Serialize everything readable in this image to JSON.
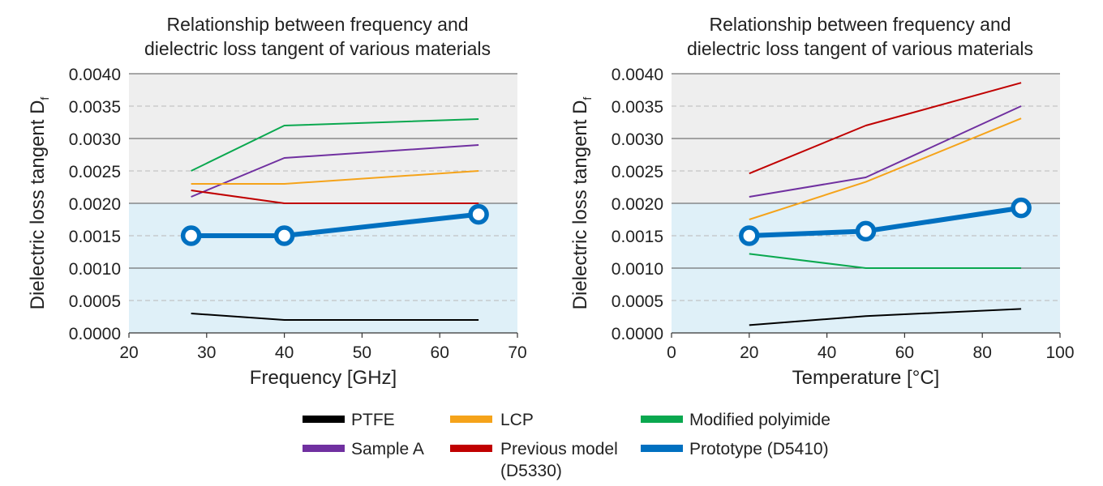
{
  "chart_data": [
    {
      "type": "line",
      "title_lines": [
        "Relationship between frequency and",
        "dielectric loss tangent of various materials"
      ],
      "xlabel": "Frequency [GHz]",
      "ylabel": "Dielectric loss tangent D",
      "ylabel_sub": "f",
      "xlim": [
        20,
        70
      ],
      "ylim": [
        0,
        0.004
      ],
      "xticks": [
        20,
        30,
        40,
        50,
        60,
        70
      ],
      "yticks": [
        "0.0000",
        "0.0005",
        "0.0010",
        "0.0015",
        "0.0020",
        "0.0025",
        "0.0030",
        "0.0035",
        "0.0040"
      ],
      "ytick_values": [
        0,
        0.0005,
        0.001,
        0.0015,
        0.002,
        0.0025,
        0.003,
        0.0035,
        0.004
      ],
      "bands": [
        {
          "from": 0,
          "to": 0.002,
          "color": "#dff0f8"
        },
        {
          "from": 0.002,
          "to": 0.004,
          "color": "#eeeeee"
        }
      ],
      "series": [
        {
          "name": "PTFE",
          "x": [
            28,
            40,
            65
          ],
          "y": [
            0.0003,
            0.0002,
            0.0002
          ]
        },
        {
          "name": "Sample A",
          "x": [
            28,
            40,
            65
          ],
          "y": [
            0.0021,
            0.0027,
            0.0029
          ]
        },
        {
          "name": "LCP",
          "x": [
            28,
            40,
            65
          ],
          "y": [
            0.0023,
            0.0023,
            0.0025
          ]
        },
        {
          "name": "Previous model (D5330)",
          "x": [
            28,
            40,
            65
          ],
          "y": [
            0.0022,
            0.002,
            0.002
          ]
        },
        {
          "name": "Modified polyimide",
          "x": [
            28,
            40,
            65
          ],
          "y": [
            0.0025,
            0.0032,
            0.0033
          ]
        },
        {
          "name": "Prototype (D5410)",
          "x": [
            28,
            40,
            65
          ],
          "y": [
            0.0015,
            0.0015,
            0.00183
          ]
        }
      ]
    },
    {
      "type": "line",
      "title_lines": [
        "Relationship between frequency and",
        "dielectric loss tangent of various materials"
      ],
      "xlabel": "Temperature [°C]",
      "ylabel": "Dielectric loss tangent D",
      "ylabel_sub": "f",
      "xlim": [
        0,
        100
      ],
      "ylim": [
        0,
        0.004
      ],
      "xticks": [
        0,
        20,
        40,
        60,
        80,
        100
      ],
      "yticks": [
        "0.0000",
        "0.0005",
        "0.0010",
        "0.0015",
        "0.0020",
        "0.0025",
        "0.0030",
        "0.0035",
        "0.0040"
      ],
      "ytick_values": [
        0,
        0.0005,
        0.001,
        0.0015,
        0.002,
        0.0025,
        0.003,
        0.0035,
        0.004
      ],
      "bands": [
        {
          "from": 0,
          "to": 0.002,
          "color": "#dff0f8"
        },
        {
          "from": 0.002,
          "to": 0.004,
          "color": "#eeeeee"
        }
      ],
      "series": [
        {
          "name": "PTFE",
          "x": [
            20,
            50,
            90
          ],
          "y": [
            0.00012,
            0.00026,
            0.00037
          ]
        },
        {
          "name": "Sample A",
          "x": [
            20,
            50,
            90
          ],
          "y": [
            0.0021,
            0.0024,
            0.0035
          ]
        },
        {
          "name": "LCP",
          "x": [
            20,
            50,
            90
          ],
          "y": [
            0.00175,
            0.00233,
            0.00331
          ]
        },
        {
          "name": "Previous model (D5330)",
          "x": [
            20,
            50,
            90
          ],
          "y": [
            0.00246,
            0.0032,
            0.00386
          ]
        },
        {
          "name": "Modified polyimide",
          "x": [
            20,
            50,
            90
          ],
          "y": [
            0.00122,
            0.001,
            0.001
          ]
        },
        {
          "name": "Prototype (D5410)",
          "x": [
            20,
            50,
            90
          ],
          "y": [
            0.0015,
            0.00157,
            0.00193
          ]
        }
      ]
    }
  ],
  "series_styles": {
    "PTFE": {
      "color": "#000000"
    },
    "Sample A": {
      "color": "#7030a0"
    },
    "LCP": {
      "color": "#f5a31a"
    },
    "Previous model (D5330)": {
      "color": "#c00000"
    },
    "Modified polyimide": {
      "color": "#0aa84f"
    },
    "Prototype (D5410)": {
      "color": "#0070c0"
    }
  },
  "legend": {
    "placement": "bottom-center",
    "items": [
      {
        "label": "PTFE",
        "color": "#000000"
      },
      {
        "label": "LCP",
        "color": "#f5a31a"
      },
      {
        "label": "Modified polyimide",
        "color": "#0aa84f"
      },
      {
        "label": "Sample A",
        "color": "#7030a0"
      },
      {
        "label": "Previous model",
        "label2": "(D5330)",
        "color": "#c00000"
      },
      {
        "label": "Prototype (D5410)",
        "color": "#0070c0"
      }
    ]
  }
}
